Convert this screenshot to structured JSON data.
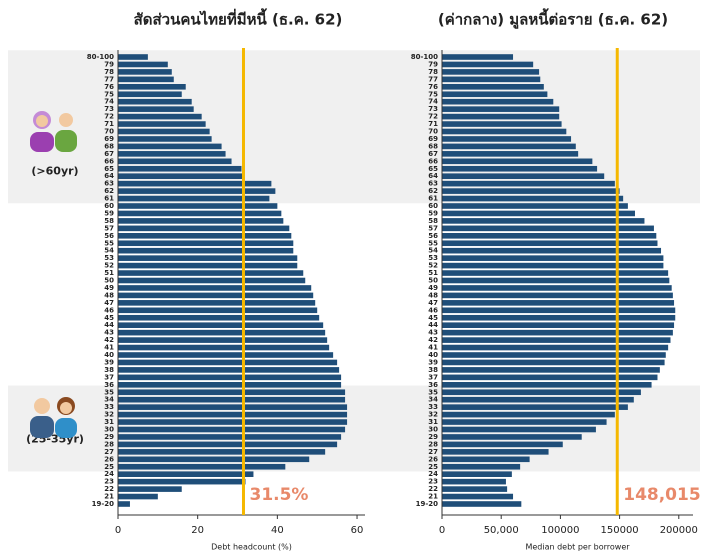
{
  "chart_data": [
    {
      "type": "barh",
      "title": "สัดส่วนคนไทยที่มีหนี้ (ธ.ค. 62)",
      "x_label": "Debt headcount (%)",
      "categories": [
        "80-100",
        "79",
        "78",
        "77",
        "76",
        "75",
        "74",
        "73",
        "72",
        "71",
        "70",
        "69",
        "68",
        "67",
        "66",
        "65",
        "64",
        "63",
        "62",
        "61",
        "60",
        "59",
        "58",
        "57",
        "56",
        "55",
        "54",
        "53",
        "52",
        "51",
        "50",
        "49",
        "48",
        "47",
        "46",
        "45",
        "44",
        "43",
        "42",
        "41",
        "40",
        "39",
        "38",
        "37",
        "36",
        "35",
        "34",
        "33",
        "32",
        "31",
        "30",
        "29",
        "28",
        "27",
        "26",
        "25",
        "24",
        "23",
        "22",
        "21",
        "19-20"
      ],
      "values": [
        7.5,
        12.5,
        13.5,
        14,
        17,
        16,
        18.5,
        19,
        21,
        22,
        23,
        23.5,
        26,
        27,
        28.5,
        31,
        31.5,
        38.5,
        39.5,
        38,
        40,
        41,
        41.5,
        43,
        43.5,
        44,
        44,
        45,
        45,
        46.5,
        47,
        48.5,
        49,
        49.5,
        50,
        50.5,
        51.5,
        52,
        52.5,
        53,
        54,
        55,
        55.5,
        56,
        56,
        57,
        57,
        57.5,
        57.5,
        57.5,
        57,
        56,
        55,
        52,
        48,
        42,
        34,
        32,
        16,
        10,
        3
      ],
      "color": "#1f4e79",
      "xlim": [
        0,
        62
      ],
      "xticks": [
        0,
        20,
        40,
        60
      ],
      "reference_line": {
        "value": 31.5,
        "label": "31.5%",
        "color": "#f5b800"
      },
      "bands": [
        {
          "from": "80-100",
          "to": "61",
          "label": "(>60yr)"
        },
        {
          "from": "35",
          "to": "25",
          "label": "(25-35yr)"
        }
      ]
    },
    {
      "type": "barh",
      "title": "(ค่ากลาง) มูลหนี้ต่อราย (ธ.ค. 62)",
      "x_label": "Median debt per borrower",
      "categories": [
        "80-100",
        "79",
        "78",
        "77",
        "76",
        "75",
        "74",
        "73",
        "72",
        "71",
        "70",
        "69",
        "68",
        "67",
        "66",
        "65",
        "64",
        "63",
        "62",
        "61",
        "60",
        "59",
        "58",
        "57",
        "56",
        "55",
        "54",
        "53",
        "52",
        "51",
        "50",
        "49",
        "48",
        "47",
        "46",
        "45",
        "44",
        "43",
        "42",
        "41",
        "40",
        "39",
        "38",
        "37",
        "36",
        "35",
        "34",
        "33",
        "32",
        "31",
        "30",
        "29",
        "28",
        "27",
        "26",
        "25",
        "24",
        "23",
        "22",
        "21",
        "19-20"
      ],
      "values": [
        60000,
        77000,
        82000,
        83000,
        86000,
        89000,
        94000,
        99000,
        99000,
        101000,
        105000,
        109000,
        113000,
        115000,
        127000,
        131000,
        137000,
        146000,
        150000,
        153000,
        157000,
        163000,
        171000,
        179000,
        181000,
        182000,
        185000,
        187000,
        187000,
        191000,
        192000,
        194000,
        195000,
        196000,
        197000,
        197000,
        196000,
        195000,
        193000,
        191000,
        189000,
        188000,
        184000,
        182000,
        177000,
        168000,
        162000,
        157000,
        146000,
        139000,
        130000,
        118000,
        102000,
        90000,
        74000,
        66000,
        59000,
        54000,
        55000,
        60000,
        67000
      ],
      "color": "#1f4e79",
      "xlim": [
        0,
        212000
      ],
      "xticks": [
        0,
        {
          "value": 50000,
          "label": "50,000"
        },
        100000,
        150000,
        200000
      ],
      "reference_line": {
        "value": 148015,
        "label": "148,015",
        "color": "#f5b800"
      }
    }
  ]
}
